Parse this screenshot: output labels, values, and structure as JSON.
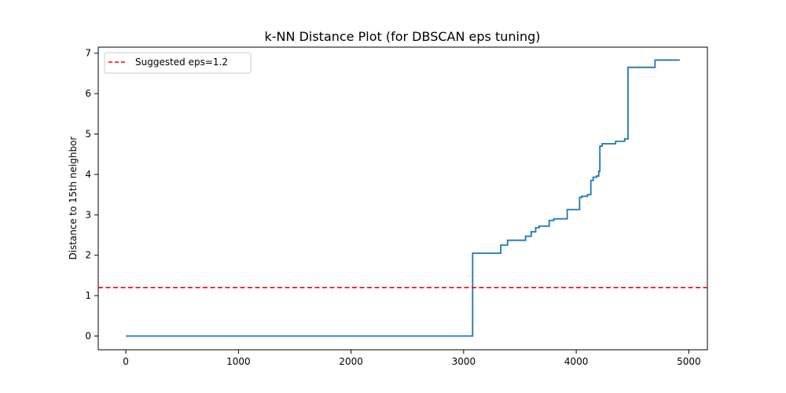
{
  "chart_data": {
    "type": "line",
    "title": "k-NN Distance Plot (for DBSCAN eps tuning)",
    "xlabel": "",
    "ylabel": "Distance to 15th neighbor",
    "xlim": [
      -245,
      5165
    ],
    "ylim": [
      -0.34,
      7.15
    ],
    "x_ticks": [
      0,
      1000,
      2000,
      3000,
      4000,
      5000
    ],
    "y_ticks": [
      0,
      1,
      2,
      3,
      4,
      5,
      6,
      7
    ],
    "grid": false,
    "legend": {
      "placement": "top-left"
    },
    "series": [
      {
        "name": "",
        "kind": "step",
        "color": "#1f77b4",
        "x": [
          0,
          3080,
          3080,
          3110,
          3330,
          3330,
          3390,
          3390,
          3550,
          3550,
          3600,
          3600,
          3640,
          3640,
          3670,
          3670,
          3760,
          3760,
          3800,
          3800,
          3920,
          3920,
          4030,
          4030,
          4050,
          4050,
          4100,
          4100,
          4130,
          4130,
          4150,
          4150,
          4180,
          4180,
          4200,
          4200,
          4210,
          4210,
          4230,
          4230,
          4250,
          4250,
          4350,
          4350,
          4430,
          4430,
          4460,
          4460,
          4700,
          4700,
          4920
        ],
        "y": [
          0,
          0,
          2.05,
          2.05,
          2.05,
          2.25,
          2.25,
          2.37,
          2.37,
          2.47,
          2.47,
          2.58,
          2.58,
          2.68,
          2.68,
          2.72,
          2.72,
          2.86,
          2.86,
          2.9,
          2.9,
          3.13,
          3.13,
          3.43,
          3.43,
          3.46,
          3.46,
          3.5,
          3.5,
          3.85,
          3.85,
          3.93,
          3.93,
          3.96,
          3.96,
          4.08,
          4.08,
          4.7,
          4.7,
          4.76,
          4.76,
          4.76,
          4.76,
          4.82,
          4.82,
          4.88,
          4.88,
          6.65,
          6.65,
          6.83,
          6.83
        ]
      },
      {
        "name": "Suggested eps=1.2",
        "kind": "hline",
        "color": "#ff0000",
        "dash": true,
        "y": 1.2
      }
    ]
  }
}
